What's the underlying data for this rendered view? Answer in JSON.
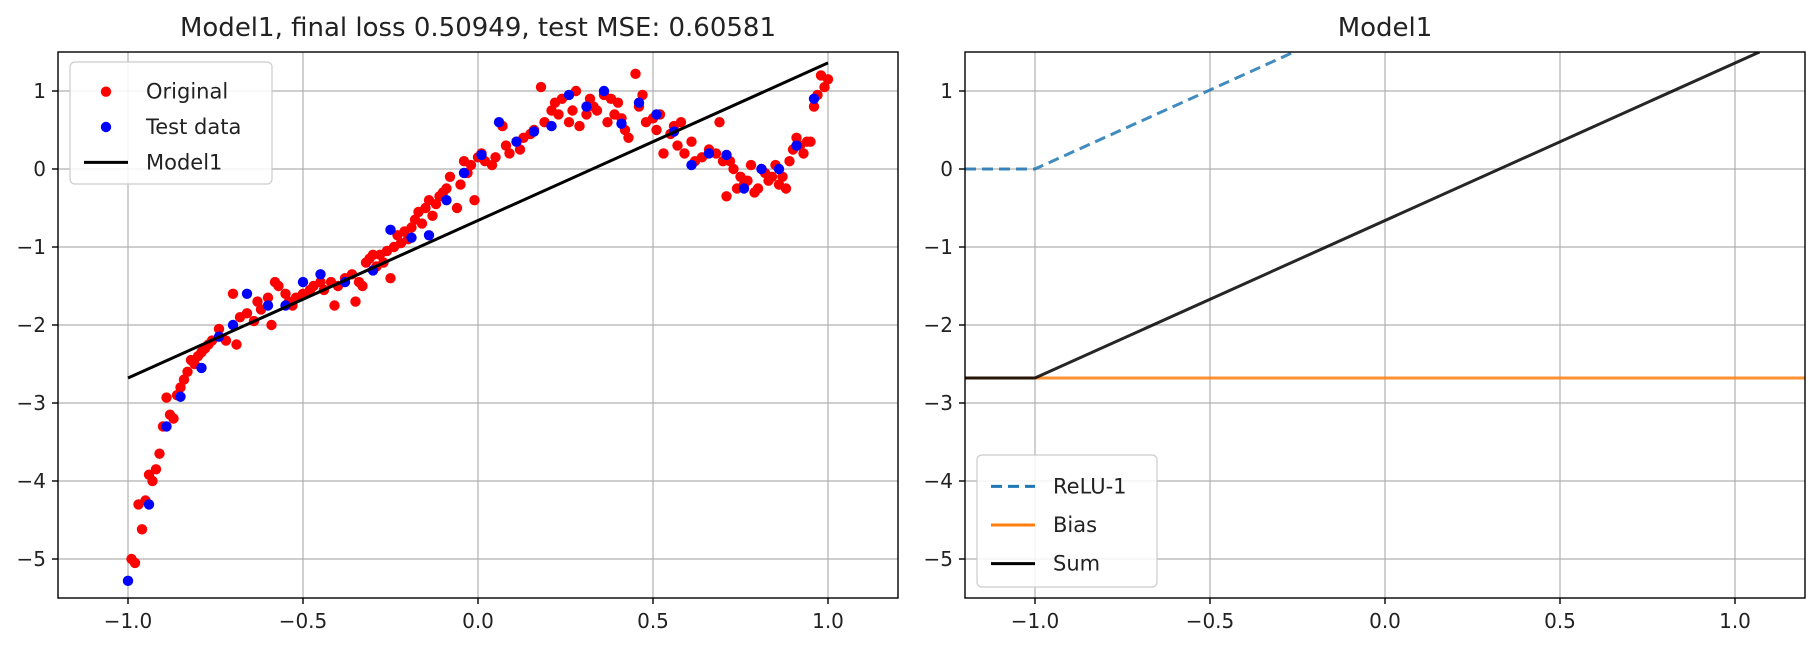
{
  "chart_data": [
    {
      "type": "scatter",
      "title": "Model1, final loss 0.50949, test MSE: 0.60581",
      "xlabel": "",
      "ylabel": "",
      "xlim": [
        -1.2,
        1.2
      ],
      "ylim": [
        -5.5,
        1.5
      ],
      "xticks": [
        -1.0,
        -0.5,
        0.0,
        0.5,
        1.0
      ],
      "xtick_labels": [
        "−1.0",
        "−0.5",
        "0.0",
        "0.5",
        "1.0"
      ],
      "yticks": [
        -5,
        -4,
        -3,
        -2,
        -1,
        0,
        1
      ],
      "ytick_labels": [
        "−5",
        "−4",
        "−3",
        "−2",
        "−1",
        "0",
        "1"
      ],
      "grid": true,
      "legend_position": "top-left",
      "series": [
        {
          "name": "Original",
          "kind": "scatter",
          "color": "#ff0000",
          "points": [
            [
              -0.99,
              -5.0
            ],
            [
              -0.98,
              -5.05
            ],
            [
              -0.97,
              -4.3
            ],
            [
              -0.96,
              -4.62
            ],
            [
              -0.95,
              -4.25
            ],
            [
              -0.94,
              -3.92
            ],
            [
              -0.93,
              -4.0
            ],
            [
              -0.92,
              -3.85
            ],
            [
              -0.91,
              -3.65
            ],
            [
              -0.9,
              -3.3
            ],
            [
              -0.89,
              -2.93
            ],
            [
              -0.88,
              -3.15
            ],
            [
              -0.87,
              -3.2
            ],
            [
              -0.86,
              -2.9
            ],
            [
              -0.85,
              -2.8
            ],
            [
              -0.84,
              -2.7
            ],
            [
              -0.83,
              -2.6
            ],
            [
              -0.82,
              -2.45
            ],
            [
              -0.81,
              -2.5
            ],
            [
              -0.8,
              -2.4
            ],
            [
              -0.79,
              -2.35
            ],
            [
              -0.78,
              -2.3
            ],
            [
              -0.77,
              -2.25
            ],
            [
              -0.76,
              -2.2
            ],
            [
              -0.74,
              -2.05
            ],
            [
              -0.72,
              -2.2
            ],
            [
              -0.7,
              -1.6
            ],
            [
              -0.69,
              -2.25
            ],
            [
              -0.68,
              -1.9
            ],
            [
              -0.66,
              -1.85
            ],
            [
              -0.64,
              -1.95
            ],
            [
              -0.63,
              -1.7
            ],
            [
              -0.62,
              -1.8
            ],
            [
              -0.6,
              -1.65
            ],
            [
              -0.59,
              -2.0
            ],
            [
              -0.58,
              -1.45
            ],
            [
              -0.57,
              -1.5
            ],
            [
              -0.55,
              -1.6
            ],
            [
              -0.54,
              -1.7
            ],
            [
              -0.53,
              -1.75
            ],
            [
              -0.52,
              -1.65
            ],
            [
              -0.5,
              -1.6
            ],
            [
              -0.48,
              -1.55
            ],
            [
              -0.47,
              -1.5
            ],
            [
              -0.45,
              -1.45
            ],
            [
              -0.44,
              -1.55
            ],
            [
              -0.42,
              -1.45
            ],
            [
              -0.41,
              -1.75
            ],
            [
              -0.4,
              -1.5
            ],
            [
              -0.38,
              -1.4
            ],
            [
              -0.36,
              -1.35
            ],
            [
              -0.35,
              -1.7
            ],
            [
              -0.34,
              -1.45
            ],
            [
              -0.33,
              -1.5
            ],
            [
              -0.32,
              -1.2
            ],
            [
              -0.31,
              -1.15
            ],
            [
              -0.3,
              -1.1
            ],
            [
              -0.29,
              -1.25
            ],
            [
              -0.28,
              -1.1
            ],
            [
              -0.27,
              -1.2
            ],
            [
              -0.26,
              -1.05
            ],
            [
              -0.25,
              -1.4
            ],
            [
              -0.24,
              -1.0
            ],
            [
              -0.23,
              -0.85
            ],
            [
              -0.22,
              -0.95
            ],
            [
              -0.21,
              -0.8
            ],
            [
              -0.2,
              -0.9
            ],
            [
              -0.19,
              -0.75
            ],
            [
              -0.18,
              -0.65
            ],
            [
              -0.17,
              -0.55
            ],
            [
              -0.16,
              -0.7
            ],
            [
              -0.15,
              -0.5
            ],
            [
              -0.14,
              -0.4
            ],
            [
              -0.13,
              -0.6
            ],
            [
              -0.12,
              -0.45
            ],
            [
              -0.11,
              -0.35
            ],
            [
              -0.1,
              -0.3
            ],
            [
              -0.09,
              -0.25
            ],
            [
              -0.08,
              -0.1
            ],
            [
              -0.06,
              -0.5
            ],
            [
              -0.05,
              -0.2
            ],
            [
              -0.04,
              0.1
            ],
            [
              -0.03,
              -0.05
            ],
            [
              -0.02,
              0.05
            ],
            [
              -0.01,
              -0.4
            ],
            [
              0.0,
              0.15
            ],
            [
              0.01,
              0.2
            ],
            [
              0.02,
              0.1
            ],
            [
              0.04,
              0.05
            ],
            [
              0.05,
              0.15
            ],
            [
              0.07,
              0.55
            ],
            [
              0.08,
              0.3
            ],
            [
              0.09,
              0.2
            ],
            [
              0.11,
              0.35
            ],
            [
              0.12,
              0.25
            ],
            [
              0.13,
              0.4
            ],
            [
              0.15,
              0.45
            ],
            [
              0.16,
              0.5
            ],
            [
              0.18,
              1.05
            ],
            [
              0.19,
              0.6
            ],
            [
              0.21,
              0.75
            ],
            [
              0.22,
              0.85
            ],
            [
              0.23,
              0.7
            ],
            [
              0.24,
              0.9
            ],
            [
              0.26,
              0.6
            ],
            [
              0.27,
              0.75
            ],
            [
              0.28,
              1.0
            ],
            [
              0.29,
              0.55
            ],
            [
              0.31,
              0.7
            ],
            [
              0.32,
              0.9
            ],
            [
              0.33,
              0.8
            ],
            [
              0.34,
              0.75
            ],
            [
              0.36,
              0.95
            ],
            [
              0.37,
              0.6
            ],
            [
              0.38,
              0.9
            ],
            [
              0.39,
              0.7
            ],
            [
              0.4,
              0.85
            ],
            [
              0.41,
              0.65
            ],
            [
              0.42,
              0.5
            ],
            [
              0.43,
              0.4
            ],
            [
              0.45,
              1.22
            ],
            [
              0.46,
              0.8
            ],
            [
              0.47,
              0.95
            ],
            [
              0.48,
              0.6
            ],
            [
              0.5,
              0.65
            ],
            [
              0.51,
              0.5
            ],
            [
              0.52,
              0.7
            ],
            [
              0.53,
              0.2
            ],
            [
              0.55,
              0.45
            ],
            [
              0.56,
              0.55
            ],
            [
              0.57,
              0.3
            ],
            [
              0.58,
              0.6
            ],
            [
              0.59,
              0.2
            ],
            [
              0.61,
              0.35
            ],
            [
              0.62,
              0.1
            ],
            [
              0.64,
              0.15
            ],
            [
              0.66,
              0.25
            ],
            [
              0.68,
              0.2
            ],
            [
              0.69,
              0.6
            ],
            [
              0.7,
              0.1
            ],
            [
              0.71,
              -0.35
            ],
            [
              0.72,
              0.1
            ],
            [
              0.73,
              0.0
            ],
            [
              0.74,
              -0.25
            ],
            [
              0.75,
              -0.1
            ],
            [
              0.76,
              -0.2
            ],
            [
              0.77,
              -0.15
            ],
            [
              0.78,
              0.05
            ],
            [
              0.79,
              -0.3
            ],
            [
              0.8,
              -0.25
            ],
            [
              0.81,
              0.0
            ],
            [
              0.82,
              -0.05
            ],
            [
              0.83,
              -0.15
            ],
            [
              0.84,
              -0.1
            ],
            [
              0.85,
              0.05
            ],
            [
              0.86,
              -0.2
            ],
            [
              0.87,
              -0.1
            ],
            [
              0.88,
              -0.25
            ],
            [
              0.89,
              0.1
            ],
            [
              0.9,
              0.25
            ],
            [
              0.91,
              0.4
            ],
            [
              0.92,
              0.3
            ],
            [
              0.93,
              0.2
            ],
            [
              0.94,
              0.35
            ],
            [
              0.95,
              0.35
            ],
            [
              0.96,
              0.8
            ],
            [
              0.97,
              0.95
            ],
            [
              0.98,
              1.2
            ],
            [
              0.99,
              1.05
            ],
            [
              1.0,
              1.15
            ]
          ]
        },
        {
          "name": "Test data",
          "kind": "scatter",
          "color": "#0000ff",
          "points": [
            [
              -1.0,
              -5.28
            ],
            [
              -0.94,
              -4.3
            ],
            [
              -0.89,
              -3.3
            ],
            [
              -0.85,
              -2.92
            ],
            [
              -0.79,
              -2.55
            ],
            [
              -0.74,
              -2.15
            ],
            [
              -0.7,
              -2.0
            ],
            [
              -0.66,
              -1.6
            ],
            [
              -0.6,
              -1.75
            ],
            [
              -0.55,
              -1.75
            ],
            [
              -0.5,
              -1.45
            ],
            [
              -0.45,
              -1.35
            ],
            [
              -0.38,
              -1.45
            ],
            [
              -0.3,
              -1.3
            ],
            [
              -0.25,
              -0.78
            ],
            [
              -0.19,
              -0.88
            ],
            [
              -0.14,
              -0.85
            ],
            [
              -0.09,
              -0.4
            ],
            [
              -0.04,
              -0.05
            ],
            [
              0.01,
              0.18
            ],
            [
              0.06,
              0.6
            ],
            [
              0.11,
              0.35
            ],
            [
              0.16,
              0.48
            ],
            [
              0.21,
              0.55
            ],
            [
              0.26,
              0.95
            ],
            [
              0.31,
              0.8
            ],
            [
              0.36,
              1.0
            ],
            [
              0.41,
              0.58
            ],
            [
              0.46,
              0.85
            ],
            [
              0.51,
              0.7
            ],
            [
              0.56,
              0.48
            ],
            [
              0.61,
              0.05
            ],
            [
              0.66,
              0.2
            ],
            [
              0.71,
              0.18
            ],
            [
              0.76,
              -0.25
            ],
            [
              0.81,
              0.0
            ],
            [
              0.86,
              0.0
            ],
            [
              0.91,
              0.3
            ],
            [
              0.96,
              0.9
            ]
          ]
        },
        {
          "name": "Model1",
          "kind": "line",
          "color": "#000000",
          "dash": "solid",
          "points": [
            [
              -1.0,
              -2.68
            ],
            [
              1.0,
              1.36
            ]
          ]
        }
      ]
    },
    {
      "type": "line",
      "title": "Model1",
      "xlabel": "",
      "ylabel": "",
      "xlim": [
        -1.2,
        1.2
      ],
      "ylim": [
        -5.5,
        1.5
      ],
      "xticks": [
        -1.0,
        -0.5,
        0.0,
        0.5,
        1.0
      ],
      "xtick_labels": [
        "−1.0",
        "−0.5",
        "0.0",
        "0.5",
        "1.0"
      ],
      "yticks": [
        -5,
        -4,
        -3,
        -2,
        -1,
        0,
        1
      ],
      "ytick_labels": [
        "−5",
        "−4",
        "−3",
        "−2",
        "−1",
        "0",
        "1"
      ],
      "grid": true,
      "legend_position": "bottom-left",
      "series": [
        {
          "name": "ReLU-1",
          "kind": "line",
          "color": "#1f77b4",
          "dash": "dashed",
          "points": [
            [
              -1.2,
              0.0
            ],
            [
              -1.0,
              0.0
            ],
            [
              -0.26,
              1.5
            ]
          ]
        },
        {
          "name": "Bias",
          "kind": "line",
          "color": "#ff7f0e",
          "dash": "solid",
          "points": [
            [
              -1.2,
              -2.68
            ],
            [
              1.2,
              -2.68
            ]
          ]
        },
        {
          "name": "Sum",
          "kind": "line",
          "color": "#000000",
          "dash": "solid",
          "points": [
            [
              -1.2,
              -2.68
            ],
            [
              -1.0,
              -2.68
            ],
            [
              1.07,
              1.5
            ]
          ]
        }
      ]
    }
  ]
}
